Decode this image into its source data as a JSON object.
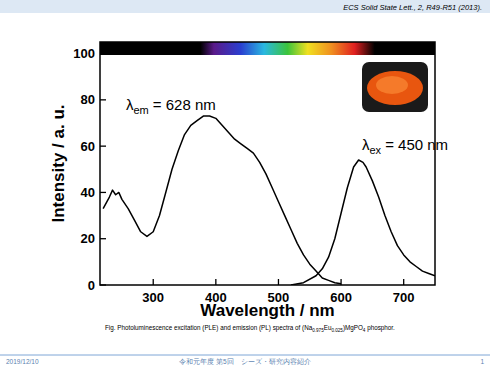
{
  "header": {
    "citation": "ECS Solid State Lett., 2, R49-R51 (2013)."
  },
  "chart_data": {
    "type": "line",
    "x_label": "Wavelength / nm",
    "y_label": "Intensity / a. u.",
    "xlim": [
      215,
      750
    ],
    "xticks": [
      300,
      400,
      500,
      600,
      700
    ],
    "ylim": [
      0,
      105
    ],
    "yticks": [
      0,
      20,
      40,
      60,
      80,
      100
    ],
    "series": [
      {
        "color": "#000000",
        "x": [
          220,
          230,
          235,
          240,
          245,
          250,
          260,
          270,
          280,
          290,
          300,
          310,
          320,
          330,
          340,
          350,
          360,
          370,
          380,
          390,
          400,
          410,
          420,
          430,
          440,
          450,
          460,
          470,
          480,
          490,
          500,
          510,
          520,
          530,
          540,
          550,
          560,
          570,
          580,
          590,
          600
        ],
        "values": [
          33,
          38,
          41,
          39,
          40,
          37,
          33,
          28,
          23,
          21,
          23,
          30,
          40,
          50,
          58,
          65,
          69,
          71,
          73,
          73,
          72,
          69,
          66,
          63,
          61,
          59,
          57,
          53,
          48,
          42,
          36,
          30,
          24,
          18,
          13,
          9,
          6,
          3,
          2,
          1,
          0.5
        ]
      },
      {
        "color": "#000000",
        "x": [
          520,
          540,
          560,
          570,
          580,
          590,
          600,
          610,
          620,
          628,
          635,
          640,
          650,
          660,
          670,
          680,
          690,
          700,
          710,
          720,
          730,
          740,
          750
        ],
        "values": [
          0,
          1,
          4,
          7,
          12,
          20,
          31,
          42,
          51,
          54,
          53,
          51,
          45,
          38,
          30,
          23,
          17,
          13,
          10,
          8,
          6,
          5,
          4
        ]
      }
    ],
    "annotations": [
      {
        "symbol": "λ",
        "sub": "em",
        "text": "= 628 nm"
      },
      {
        "symbol": "λ",
        "sub": "ex",
        "text": "= 450 nm"
      }
    ]
  },
  "caption": [
    {
      "text": "Fig. Photoluminescence excitation (PLE) and emission (PL) spectra of (Na"
    },
    {
      "sub": "0.975"
    },
    {
      "text": "Eu"
    },
    {
      "sub": "0.025"
    },
    {
      "text": ")MgPO"
    },
    {
      "sub": "4"
    },
    {
      "text": " phosphor."
    }
  ],
  "footer": {
    "date": "2019/12/10",
    "title": "令和元年度 第5回　シーズ・研究内容紹介",
    "page": "1"
  }
}
